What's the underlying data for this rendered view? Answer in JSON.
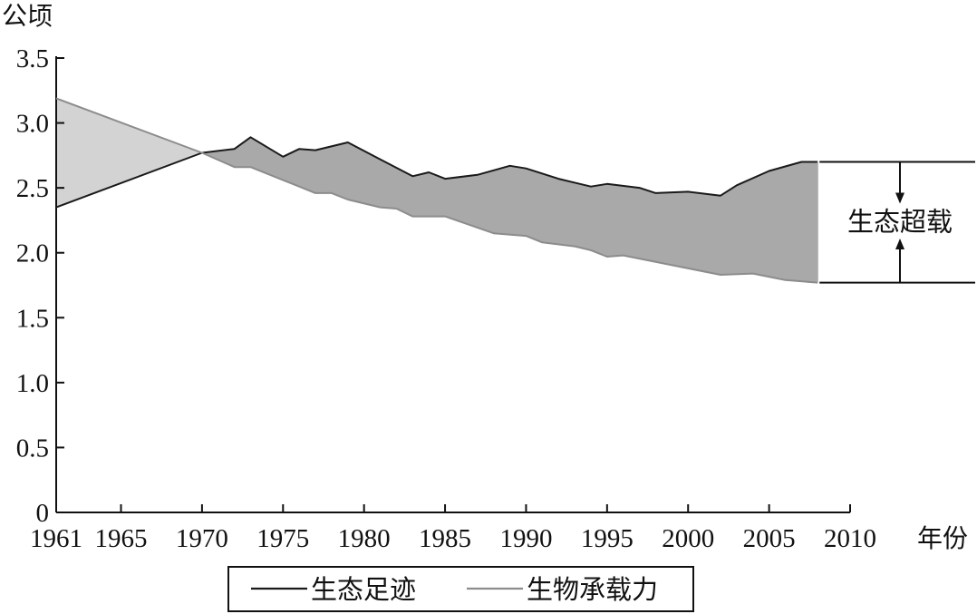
{
  "chart_data": {
    "type": "area",
    "title": "",
    "ylabel": "公顷",
    "xlabel": "年份",
    "xlim": [
      1961,
      2010
    ],
    "ylim": [
      0,
      3.5
    ],
    "xticks": [
      1961,
      1965,
      1970,
      1975,
      1980,
      1985,
      1990,
      1995,
      2000,
      2005,
      2010
    ],
    "yticks": [
      "0",
      "0.5",
      "1.0",
      "1.5",
      "2.0",
      "2.5",
      "3.0",
      "3.5"
    ],
    "grid": false,
    "legend_position": "bottom-center",
    "series": [
      {
        "name": "生态足迹",
        "color": "#1a1a1a",
        "points": [
          [
            1961,
            2.35
          ],
          [
            1970,
            2.77
          ],
          [
            1972,
            2.8
          ],
          [
            1973,
            2.89
          ],
          [
            1975,
            2.74
          ],
          [
            1976,
            2.8
          ],
          [
            1977,
            2.79
          ],
          [
            1979,
            2.85
          ],
          [
            1981,
            2.72
          ],
          [
            1983,
            2.59
          ],
          [
            1984,
            2.62
          ],
          [
            1985,
            2.57
          ],
          [
            1987,
            2.6
          ],
          [
            1989,
            2.67
          ],
          [
            1990,
            2.65
          ],
          [
            1992,
            2.57
          ],
          [
            1994,
            2.51
          ],
          [
            1995,
            2.53
          ],
          [
            1997,
            2.5
          ],
          [
            1998,
            2.46
          ],
          [
            2000,
            2.47
          ],
          [
            2002,
            2.44
          ],
          [
            2003,
            2.52
          ],
          [
            2005,
            2.63
          ],
          [
            2007,
            2.7
          ],
          [
            2008,
            2.7
          ]
        ]
      },
      {
        "name": "生物承载力",
        "color": "#8c8c8c",
        "points": [
          [
            1961,
            3.19
          ],
          [
            1970,
            2.77
          ],
          [
            1972,
            2.66
          ],
          [
            1973,
            2.66
          ],
          [
            1975,
            2.56
          ],
          [
            1976,
            2.51
          ],
          [
            1977,
            2.46
          ],
          [
            1978,
            2.46
          ],
          [
            1979,
            2.41
          ],
          [
            1981,
            2.35
          ],
          [
            1982,
            2.34
          ],
          [
            1983,
            2.28
          ],
          [
            1985,
            2.28
          ],
          [
            1988,
            2.15
          ],
          [
            1990,
            2.13
          ],
          [
            1991,
            2.08
          ],
          [
            1993,
            2.05
          ],
          [
            1994,
            2.02
          ],
          [
            1995,
            1.97
          ],
          [
            1996,
            1.98
          ],
          [
            2000,
            1.88
          ],
          [
            2002,
            1.83
          ],
          [
            2004,
            1.84
          ],
          [
            2006,
            1.79
          ],
          [
            2008,
            1.77
          ]
        ]
      }
    ],
    "fill_colors": {
      "surplus": "#d3d3d3",
      "deficit": "#a9a9a9"
    },
    "annotation": {
      "text": "生态超载",
      "x": 2008
    }
  }
}
